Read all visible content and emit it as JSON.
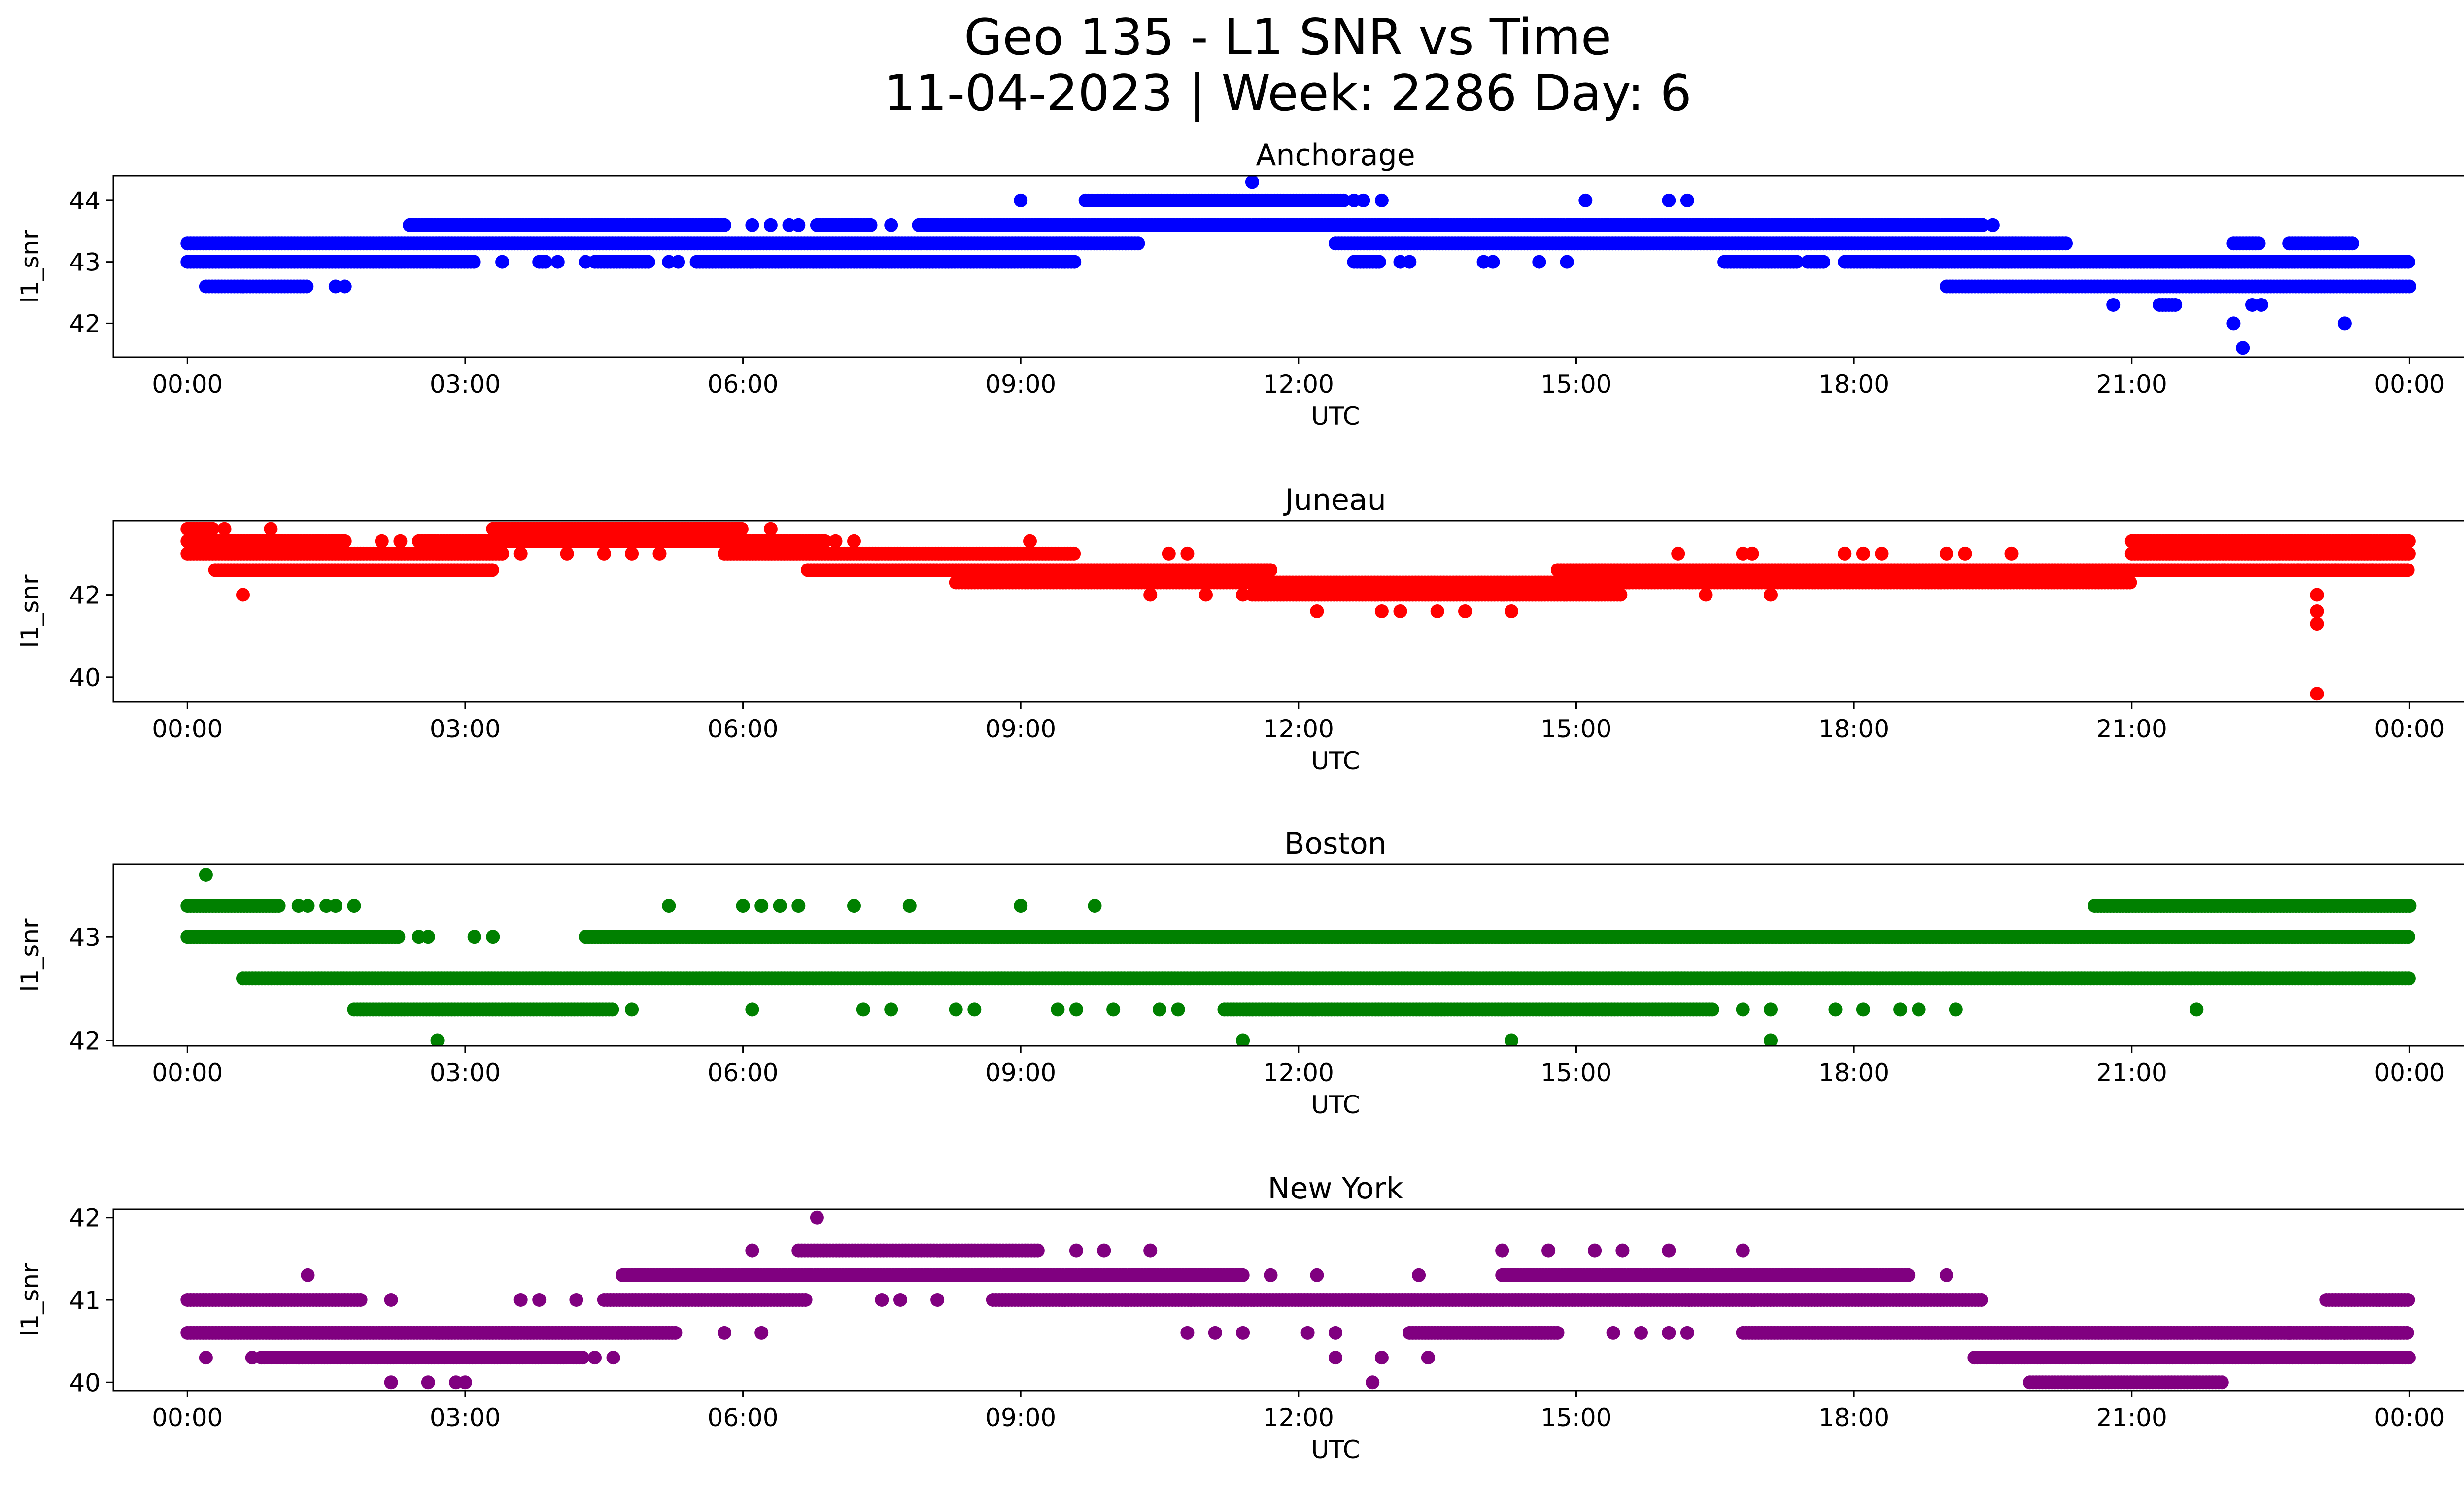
{
  "figure": {
    "title_line1": "Geo 135 - L1 SNR vs Time",
    "title_line2": "11-04-2023 | Week: 2286 Day: 6"
  },
  "chart_data": [
    {
      "type": "scatter",
      "title": "Anchorage",
      "xlabel": "UTC",
      "ylabel": "l1_snr",
      "color": "#0000ff",
      "xlim": [
        -0.8,
        25.6
      ],
      "ylim": [
        41.45,
        44.4
      ],
      "xticks": [
        "00:00",
        "03:00",
        "06:00",
        "09:00",
        "12:00",
        "15:00",
        "18:00",
        "21:00",
        "00:00"
      ],
      "yticks": [
        42,
        43,
        44
      ],
      "bands": [
        {
          "y": 43.3,
          "x_ranges": [
            [
              0.0,
              10.3
            ],
            [
              12.4,
              20.3
            ],
            [
              22.1,
              22.4
            ],
            [
              22.7,
              23.4
            ]
          ]
        },
        {
          "y": 43.0,
          "x_ranges": [
            [
              0.0,
              3.1
            ],
            [
              3.8,
              3.9
            ],
            [
              4.4,
              5.0
            ],
            [
              5.5,
              9.6
            ],
            [
              12.6,
              12.9
            ],
            [
              16.6,
              17.4
            ],
            [
              17.5,
              17.7
            ],
            [
              17.9,
              24.0
            ]
          ]
        },
        {
          "y": 42.6,
          "x_ranges": [
            [
              0.2,
              1.3
            ],
            [
              19.0,
              24.0
            ]
          ]
        },
        {
          "y": 43.6,
          "x_ranges": [
            [
              2.4,
              5.8
            ],
            [
              6.8,
              7.4
            ],
            [
              7.9,
              19.4
            ]
          ]
        },
        {
          "y": 44.0,
          "x_ranges": [
            [
              9.7,
              12.5
            ]
          ]
        },
        {
          "y": 42.3,
          "x_ranges": [
            [
              21.3,
              21.5
            ]
          ]
        }
      ],
      "points": [
        [
          3.4,
          43.0
        ],
        [
          4.0,
          43.0
        ],
        [
          4.3,
          43.0
        ],
        [
          5.2,
          43.0
        ],
        [
          5.3,
          43.0
        ],
        [
          13.1,
          43.0
        ],
        [
          13.2,
          43.0
        ],
        [
          14.0,
          43.0
        ],
        [
          14.1,
          43.0
        ],
        [
          14.6,
          43.0
        ],
        [
          14.9,
          43.0
        ],
        [
          0.6,
          42.6
        ],
        [
          1.6,
          42.6
        ],
        [
          1.7,
          42.6
        ],
        [
          2.6,
          43.6
        ],
        [
          2.8,
          43.6
        ],
        [
          6.1,
          43.6
        ],
        [
          6.3,
          43.6
        ],
        [
          6.5,
          43.6
        ],
        [
          6.6,
          43.6
        ],
        [
          7.6,
          43.6
        ],
        [
          18.7,
          43.6
        ],
        [
          18.8,
          43.6
        ],
        [
          19.1,
          43.6
        ],
        [
          19.5,
          43.6
        ],
        [
          9.0,
          44.0
        ],
        [
          12.6,
          44.0
        ],
        [
          12.7,
          44.0
        ],
        [
          12.9,
          44.0
        ],
        [
          15.1,
          44.0
        ],
        [
          16.0,
          44.0
        ],
        [
          16.2,
          44.0
        ],
        [
          11.5,
          44.3
        ],
        [
          20.8,
          42.3
        ],
        [
          22.1,
          42.0
        ],
        [
          22.2,
          41.6
        ],
        [
          22.3,
          42.3
        ],
        [
          22.4,
          42.3
        ],
        [
          23.3,
          42.0
        ]
      ]
    },
    {
      "type": "scatter",
      "title": "Juneau",
      "xlabel": "UTC",
      "ylabel": "l1_snr",
      "color": "#ff0000",
      "xlim": [
        -0.8,
        25.6
      ],
      "ylim": [
        39.4,
        43.8
      ],
      "xticks": [
        "00:00",
        "03:00",
        "06:00",
        "09:00",
        "12:00",
        "15:00",
        "18:00",
        "21:00",
        "00:00"
      ],
      "yticks": [
        40,
        42
      ],
      "bands": [
        {
          "y": 43.6,
          "x_ranges": [
            [
              0.0,
              0.3
            ],
            [
              3.3,
              6.0
            ]
          ]
        },
        {
          "y": 43.3,
          "x_ranges": [
            [
              0.0,
              1.7
            ],
            [
              2.5,
              6.9
            ],
            [
              21.0,
              24.0
            ]
          ]
        },
        {
          "y": 43.0,
          "x_ranges": [
            [
              0.0,
              3.4
            ],
            [
              5.8,
              9.6
            ],
            [
              21.0,
              24.0
            ]
          ]
        },
        {
          "y": 42.6,
          "x_ranges": [
            [
              0.3,
              3.3
            ],
            [
              6.7,
              11.7
            ],
            [
              14.8,
              24.0
            ]
          ]
        },
        {
          "y": 42.3,
          "x_ranges": [
            [
              8.3,
              21.0
            ]
          ]
        },
        {
          "y": 42.0,
          "x_ranges": [
            [
              11.5,
              15.5
            ]
          ]
        }
      ],
      "points": [
        [
          0.6,
          42.0
        ],
        [
          0.4,
          43.6
        ],
        [
          0.9,
          43.6
        ],
        [
          2.1,
          43.3
        ],
        [
          2.3,
          43.3
        ],
        [
          3.6,
          43.0
        ],
        [
          4.1,
          43.0
        ],
        [
          4.5,
          43.0
        ],
        [
          4.8,
          43.0
        ],
        [
          5.1,
          43.0
        ],
        [
          6.3,
          43.6
        ],
        [
          7.0,
          43.3
        ],
        [
          7.2,
          43.3
        ],
        [
          9.1,
          43.3
        ],
        [
          10.6,
          43.0
        ],
        [
          10.8,
          43.0
        ],
        [
          10.4,
          42.0
        ],
        [
          11.0,
          42.0
        ],
        [
          11.4,
          42.0
        ],
        [
          12.2,
          41.6
        ],
        [
          12.9,
          41.6
        ],
        [
          13.1,
          41.6
        ],
        [
          13.5,
          41.6
        ],
        [
          13.8,
          41.6
        ],
        [
          14.3,
          41.6
        ],
        [
          16.1,
          43.0
        ],
        [
          16.8,
          43.0
        ],
        [
          16.9,
          43.0
        ],
        [
          16.4,
          42.0
        ],
        [
          17.1,
          42.0
        ],
        [
          17.9,
          43.0
        ],
        [
          18.1,
          43.0
        ],
        [
          18.3,
          43.0
        ],
        [
          19.0,
          43.0
        ],
        [
          19.2,
          43.0
        ],
        [
          19.7,
          43.0
        ],
        [
          22.0,
          42.6
        ],
        [
          22.6,
          42.6
        ],
        [
          22.9,
          42.6
        ],
        [
          23.2,
          42.6
        ],
        [
          23.5,
          42.6
        ],
        [
          23.6,
          42.6
        ],
        [
          22.8,
          42.6
        ],
        [
          23.0,
          42.0
        ],
        [
          23.0,
          41.6
        ],
        [
          23.0,
          41.3
        ],
        [
          23.0,
          39.6
        ]
      ]
    },
    {
      "type": "scatter",
      "title": "Boston",
      "xlabel": "UTC",
      "ylabel": "l1_snr",
      "color": "#008000",
      "xlim": [
        -0.8,
        25.6
      ],
      "ylim": [
        41.95,
        43.7
      ],
      "xticks": [
        "00:00",
        "03:00",
        "06:00",
        "09:00",
        "12:00",
        "15:00",
        "18:00",
        "21:00",
        "00:00"
      ],
      "yticks": [
        42,
        43
      ],
      "bands": [
        {
          "y": 43.3,
          "x_ranges": [
            [
              0.0,
              1.0
            ],
            [
              20.6,
              24.0
            ]
          ]
        },
        {
          "y": 43.0,
          "x_ranges": [
            [
              0.0,
              2.3
            ],
            [
              4.3,
              24.0
            ]
          ]
        },
        {
          "y": 42.6,
          "x_ranges": [
            [
              0.6,
              24.0
            ]
          ]
        },
        {
          "y": 42.3,
          "x_ranges": [
            [
              1.8,
              4.6
            ],
            [
              11.2,
              16.5
            ]
          ]
        }
      ],
      "points": [
        [
          0.2,
          43.6
        ],
        [
          1.2,
          43.3
        ],
        [
          1.3,
          43.3
        ],
        [
          1.5,
          43.3
        ],
        [
          1.6,
          43.3
        ],
        [
          1.8,
          43.3
        ],
        [
          5.2,
          43.3
        ],
        [
          6.0,
          43.3
        ],
        [
          6.2,
          43.3
        ],
        [
          6.4,
          43.3
        ],
        [
          6.6,
          43.3
        ],
        [
          7.2,
          43.3
        ],
        [
          7.8,
          43.3
        ],
        [
          9.0,
          43.3
        ],
        [
          9.8,
          43.3
        ],
        [
          2.5,
          43.0
        ],
        [
          2.6,
          43.0
        ],
        [
          3.1,
          43.0
        ],
        [
          3.3,
          43.0
        ],
        [
          4.8,
          42.3
        ],
        [
          6.1,
          42.3
        ],
        [
          7.3,
          42.3
        ],
        [
          7.6,
          42.3
        ],
        [
          8.3,
          42.3
        ],
        [
          8.5,
          42.3
        ],
        [
          9.4,
          42.3
        ],
        [
          9.6,
          42.3
        ],
        [
          10.0,
          42.3
        ],
        [
          10.5,
          42.3
        ],
        [
          10.7,
          42.3
        ],
        [
          16.8,
          42.3
        ],
        [
          17.1,
          42.3
        ],
        [
          17.8,
          42.3
        ],
        [
          18.1,
          42.3
        ],
        [
          18.5,
          42.3
        ],
        [
          18.7,
          42.3
        ],
        [
          19.1,
          42.3
        ],
        [
          21.7,
          42.3
        ],
        [
          2.7,
          42.0
        ],
        [
          11.4,
          42.0
        ],
        [
          14.3,
          42.0
        ],
        [
          17.1,
          42.0
        ]
      ]
    },
    {
      "type": "scatter",
      "title": "New York",
      "xlabel": "UTC",
      "ylabel": "l1_snr",
      "color": "#800080",
      "xlim": [
        -0.8,
        25.6
      ],
      "ylim": [
        39.9,
        42.1
      ],
      "xticks": [
        "00:00",
        "03:00",
        "06:00",
        "09:00",
        "12:00",
        "15:00",
        "18:00",
        "21:00",
        "00:00"
      ],
      "yticks": [
        40,
        41,
        42
      ],
      "bands": [
        {
          "y": 41.0,
          "x_ranges": [
            [
              0.0,
              1.9
            ],
            [
              4.5,
              6.7
            ],
            [
              8.7,
              19.4
            ],
            [
              23.1,
              24.0
            ]
          ]
        },
        {
          "y": 40.6,
          "x_ranges": [
            [
              0.0,
              5.3
            ],
            [
              13.2,
              14.8
            ],
            [
              16.8,
              24.0
            ]
          ]
        },
        {
          "y": 40.3,
          "x_ranges": [
            [
              0.8,
              4.3
            ],
            [
              19.3,
              24.0
            ]
          ]
        },
        {
          "y": 41.3,
          "x_ranges": [
            [
              4.7,
              11.4
            ],
            [
              14.2,
              18.6
            ]
          ]
        },
        {
          "y": 41.6,
          "x_ranges": [
            [
              6.6,
              9.2
            ]
          ]
        },
        {
          "y": 40.0,
          "x_ranges": [
            [
              19.9,
              22.0
            ]
          ]
        }
      ],
      "points": [
        [
          1.3,
          41.3
        ],
        [
          2.2,
          41.0
        ],
        [
          3.6,
          41.0
        ],
        [
          3.8,
          41.0
        ],
        [
          4.2,
          41.0
        ],
        [
          7.5,
          41.0
        ],
        [
          7.7,
          41.0
        ],
        [
          8.1,
          41.0
        ],
        [
          0.2,
          40.3
        ],
        [
          0.7,
          40.3
        ],
        [
          1.2,
          40.3
        ],
        [
          4.4,
          40.3
        ],
        [
          4.6,
          40.3
        ],
        [
          2.2,
          40.0
        ],
        [
          2.6,
          40.0
        ],
        [
          2.9,
          40.0
        ],
        [
          3.0,
          40.0
        ],
        [
          5.8,
          40.6
        ],
        [
          6.2,
          40.6
        ],
        [
          10.8,
          40.6
        ],
        [
          11.1,
          40.6
        ],
        [
          11.4,
          40.6
        ],
        [
          12.1,
          40.6
        ],
        [
          12.4,
          40.6
        ],
        [
          15.4,
          40.6
        ],
        [
          15.7,
          40.6
        ],
        [
          16.0,
          40.6
        ],
        [
          16.2,
          40.6
        ],
        [
          6.1,
          41.6
        ],
        [
          9.6,
          41.6
        ],
        [
          9.9,
          41.6
        ],
        [
          10.4,
          41.6
        ],
        [
          14.2,
          41.6
        ],
        [
          14.7,
          41.6
        ],
        [
          16.8,
          41.6
        ],
        [
          15.2,
          41.6
        ],
        [
          15.5,
          41.6
        ],
        [
          16.0,
          41.6
        ],
        [
          11.7,
          41.3
        ],
        [
          12.2,
          41.3
        ],
        [
          13.3,
          41.3
        ],
        [
          19.0,
          41.3
        ],
        [
          12.4,
          40.3
        ],
        [
          12.9,
          40.3
        ],
        [
          13.4,
          40.3
        ],
        [
          12.8,
          40.0
        ],
        [
          6.8,
          42.0
        ],
        [
          22.7,
          40.6
        ],
        [
          23.3,
          40.6
        ]
      ]
    }
  ]
}
